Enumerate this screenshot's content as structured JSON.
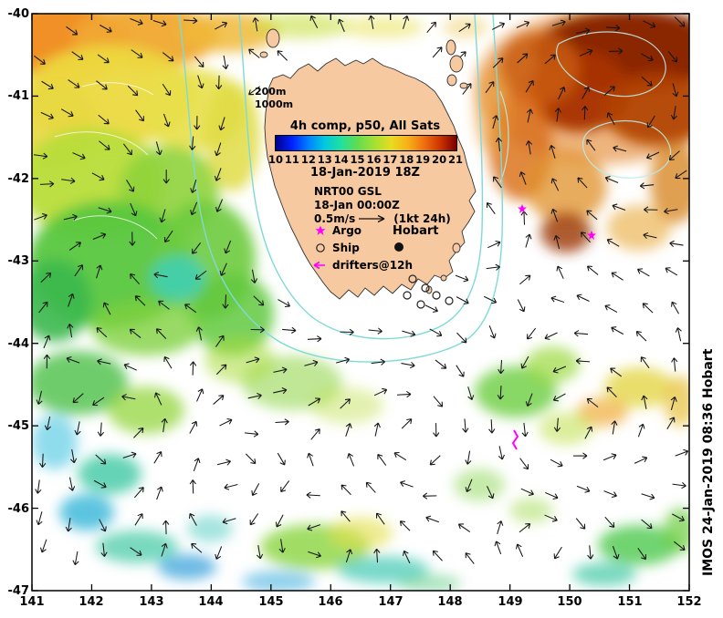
{
  "axes": {
    "x_ticks": [
      "141",
      "142",
      "143",
      "144",
      "145",
      "146",
      "147",
      "148",
      "149",
      "150",
      "151",
      "152"
    ],
    "y_ticks": [
      "-40",
      "-41",
      "-42",
      "-43",
      "-44",
      "-45",
      "-46",
      "-47"
    ]
  },
  "overlay": {
    "title": "4h comp, p50, All Sats",
    "composite_datetime": "18-Jan-2019 18Z",
    "colorbar_ticks": [
      "10",
      "11",
      "12",
      "13",
      "14",
      "15",
      "16",
      "17",
      "18",
      "19",
      "20",
      "21"
    ],
    "model_name": "NRT00 GSL",
    "model_datetime": "18-Jan 00:00Z",
    "vector_scale": "0.5m/s",
    "vector_scale_note": "(1kt 24h)",
    "legend": {
      "argo": "Argo",
      "ship": "Ship",
      "drifters": "drifters@12h"
    },
    "depth_labels": {
      "shallow": "200m",
      "deep": "1000m"
    },
    "city": "Hobart"
  },
  "watermark": "IMOS 24-Jan-2019 08:36 Hobart",
  "colors": {
    "land": "#f7c9a1",
    "bathymetry_contour": "#7fd9d9",
    "marker_magenta": "#ff00ff",
    "arrow": "#151515"
  },
  "chart_data": {
    "type": "heatmap",
    "title": "4h comp, p50, All Sats",
    "composite_time": "18-Jan-2019 18Z",
    "colorbar_ticks": [
      10,
      11,
      12,
      13,
      14,
      15,
      16,
      17,
      18,
      19,
      20,
      21
    ],
    "colorbar_range": [
      10,
      21
    ],
    "xlim": [
      141,
      152
    ],
    "ylim": [
      -47,
      -40
    ],
    "x_tick_values": [
      141,
      142,
      143,
      144,
      145,
      146,
      147,
      148,
      149,
      150,
      151,
      152
    ],
    "y_tick_values": [
      -40,
      -41,
      -42,
      -43,
      -44,
      -45,
      -46,
      -47
    ],
    "legend_position": "over Tasmania landmass (center of map)",
    "grid": false,
    "overlays": [
      "surface current vectors NRT00 GSL at 18-Jan 00:00Z, scale 0.5m/s (1kt 24h)",
      "bathymetry contours 200m and 1000m (cyan)",
      "Argo float markers (magenta stars)",
      "Ship observation markers (open circles southeast of Tasmania)",
      "drifters@12h markers (magenta arrows)",
      "Hobart city marker at approx 147.3E 42.9S"
    ],
    "features": [
      {
        "region": "northeast corner ~149.5-152E, 40-41.5S",
        "sst_c": "19-21 (dark red warm eddy)"
      },
      {
        "region": "west of Tasmania ~141-144.5E, 40-43.5S",
        "sst_c": "14-18 (yellow/green/orange)"
      },
      {
        "region": "southwest and south ~141-148E, 44-47S",
        "sst_c": "11-15 (green/cyan/blue patches)"
      },
      {
        "region": "white areas",
        "sst_c": "no data (cloud gaps)"
      }
    ]
  }
}
